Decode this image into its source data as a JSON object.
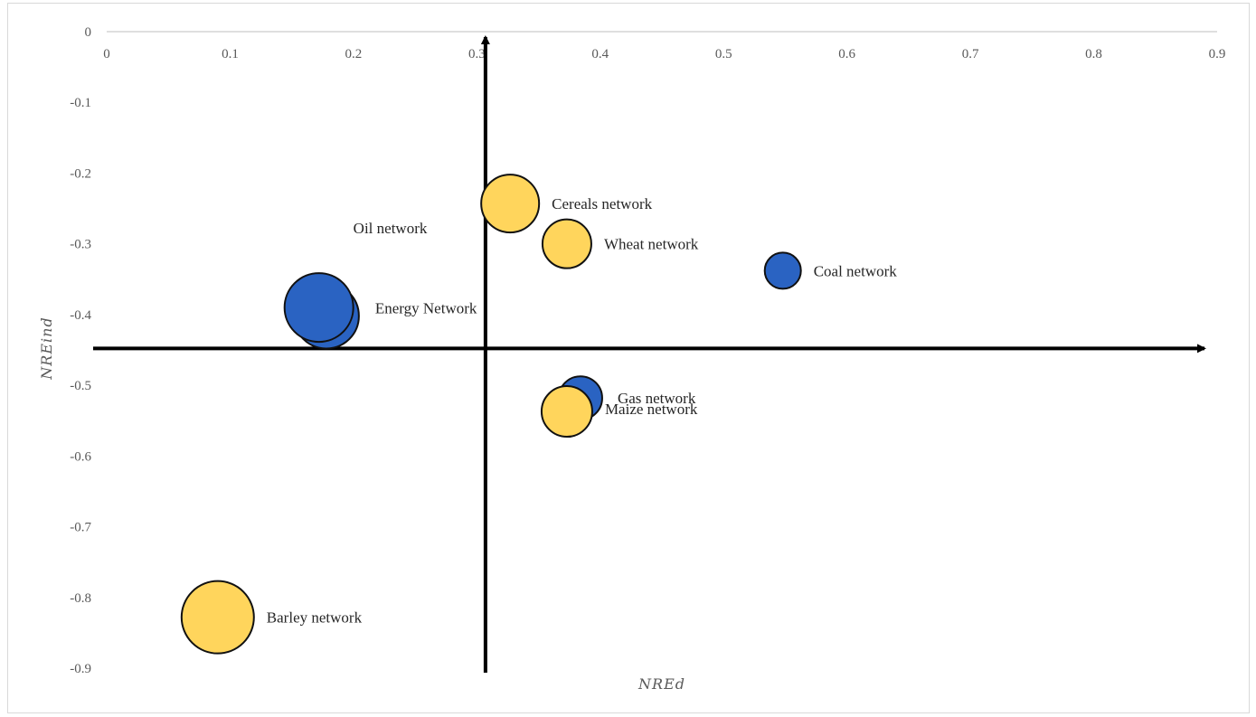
{
  "chart_data": {
    "type": "bubble",
    "title": "",
    "xlabel": "NREd",
    "ylabel": "NREind",
    "xlim": [
      0,
      0.9
    ],
    "ylim": [
      -0.9,
      0
    ],
    "x_ticks": [
      "0",
      "0.1",
      "0.2",
      "0.3",
      "0.4",
      "0.5",
      "0.6",
      "0.7",
      "0.8",
      "0.9"
    ],
    "y_ticks": [
      "0",
      "-0.1",
      "-0.2",
      "-0.3",
      "-0.4",
      "-0.5",
      "-0.6",
      "-0.7",
      "-0.8",
      "-0.9"
    ],
    "quadrant_axes": {
      "x_at": 0.307,
      "y_at": -0.448
    },
    "grid": false,
    "colors": {
      "energy": "#2a63c2",
      "agri": "#ffd55c",
      "outline": "#111111"
    },
    "points": [
      {
        "label": "Cereals network",
        "x": 0.327,
        "y": -0.243,
        "size": 32,
        "group": "agri"
      },
      {
        "label": "Wheat network",
        "x": 0.373,
        "y": -0.3,
        "size": 27,
        "group": "agri"
      },
      {
        "label": "Coal network",
        "x": 0.548,
        "y": -0.338,
        "size": 20,
        "group": "energy"
      },
      {
        "label": "Energy Network",
        "x": 0.178,
        "y": -0.402,
        "size": 36,
        "group": "energy"
      },
      {
        "label": "Oil network",
        "x": 0.172,
        "y": -0.39,
        "size": 38,
        "group": "energy"
      },
      {
        "label": "Gas network",
        "x": 0.384,
        "y": -0.518,
        "size": 24,
        "group": "energy"
      },
      {
        "label": "Maize network",
        "x": 0.373,
        "y": -0.537,
        "size": 28,
        "group": "agri"
      },
      {
        "label": "Barley network",
        "x": 0.09,
        "y": -0.828,
        "size": 40,
        "group": "agri"
      }
    ]
  }
}
